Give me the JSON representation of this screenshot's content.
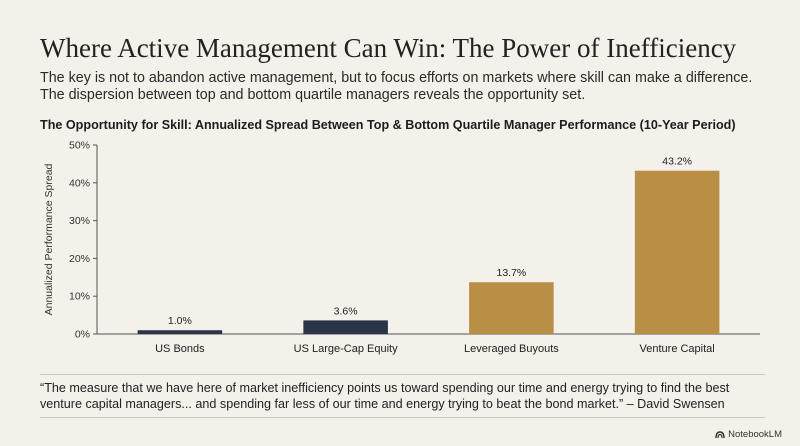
{
  "header": {
    "title": "Where Active Management Can Win: The Power of Inefficiency",
    "subtitle_line1": "The key is not to abandon active management, but to focus efforts on markets where skill can make a difference.",
    "subtitle_line2": "The dispersion between top and bottom quartile managers reveals the opportunity set."
  },
  "chart_data": {
    "type": "bar",
    "title": "The Opportunity for Skill: Annualized Spread Between Top & Bottom Quartile Manager Performance (10-Year Period)",
    "xlabel": "",
    "ylabel": "Annualized Performance Spread",
    "categories": [
      "US Bonds",
      "US Large-Cap Equity",
      "Leveraged Buyouts",
      "Venture Capital"
    ],
    "values": [
      1.0,
      3.6,
      13.7,
      43.2
    ],
    "value_labels": [
      "1.0%",
      "3.6%",
      "13.7%",
      "43.2%"
    ],
    "ylim": [
      0,
      50
    ],
    "yticks": [
      0,
      10,
      20,
      30,
      40,
      50
    ],
    "ytick_labels": [
      "0%",
      "10%",
      "20%",
      "30%",
      "40%",
      "50%"
    ],
    "grid": false,
    "bar_colors": [
      "#2b3548",
      "#2b3548",
      "#b98e45",
      "#b98e45"
    ]
  },
  "quote": {
    "line1": "“The measure that we have here of market inefficiency points us toward spending our time and energy trying to find the best",
    "line2": "venture capital managers... and spending far less of our time and energy trying to beat the bond market.”  – David Swensen"
  },
  "brand": {
    "label": "NotebookLM"
  }
}
